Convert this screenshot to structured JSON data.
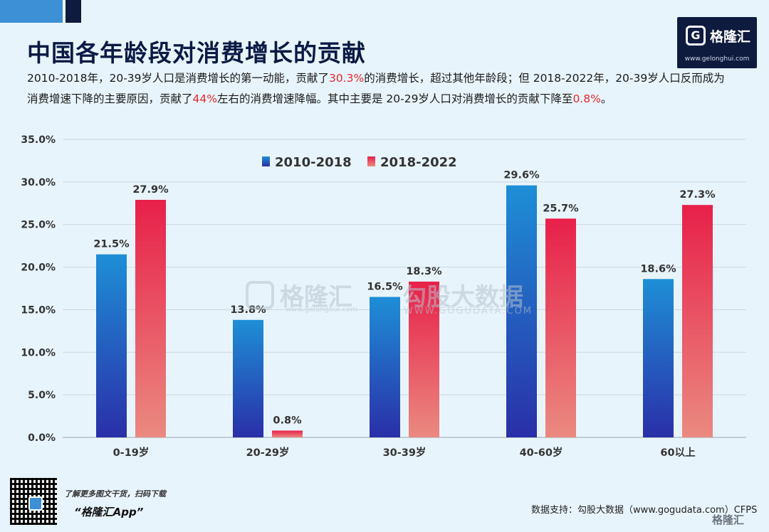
{
  "title": "中国各年龄段对消费增长的贡献",
  "description": {
    "p1": "2010-2018年，20-39岁人口是消费增长的第一动能，贡献了",
    "h1": "30.3%",
    "p2": "的消费增长，超过其他年龄段；但 2018-2022年，20-39岁人口反而成为消费增速下降的主要原因，贡献了",
    "h2": "44%",
    "p3": "左右的消费增速降幅。其中主要是 20-29岁人口对消费增长的贡献下降至",
    "h3": "0.8%",
    "p4": "。"
  },
  "logo": {
    "name": "格隆汇",
    "url": "www.gelonghui.com"
  },
  "watermark": {
    "brand": "格隆汇",
    "brand_url": "www.gelonghui.com",
    "partner": "勾股大数据",
    "partner_url": "WWW.GOGUDATA.COM"
  },
  "footer": {
    "promo_line1": "了解更多图文干货，扫码下载",
    "promo_line2": "“格隆汇App”",
    "source": "数据支持：勾股大数据（www.gogudata.com）CFPS",
    "corner_logo": "格隆汇"
  },
  "chart_data": {
    "type": "bar",
    "categories": [
      "0-19岁",
      "20-29岁",
      "30-39岁",
      "40-60岁",
      "60以上"
    ],
    "series": [
      {
        "name": "2010-2018",
        "values": [
          21.5,
          13.8,
          16.5,
          29.6,
          18.6
        ],
        "labels": [
          "21.5%",
          "13.8%",
          "16.5%",
          "29.6%",
          "18.6%"
        ]
      },
      {
        "name": "2018-2022",
        "values": [
          27.9,
          0.8,
          18.3,
          25.7,
          27.3
        ],
        "labels": [
          "27.9%",
          "0.8%",
          "18.3%",
          "25.7%",
          "27.3%"
        ]
      }
    ],
    "ylim": [
      0,
      35
    ],
    "yticks": [
      "0.0%",
      "5.0%",
      "10.0%",
      "15.0%",
      "20.0%",
      "25.0%",
      "30.0%",
      "35.0%"
    ],
    "grid": true,
    "legend": "top-center",
    "colors": {
      "series1_top": "#1e8fd6",
      "series1_bottom": "#2a2fa8",
      "series2_top": "#e8204a",
      "series2_bottom": "#ea8a80"
    }
  }
}
